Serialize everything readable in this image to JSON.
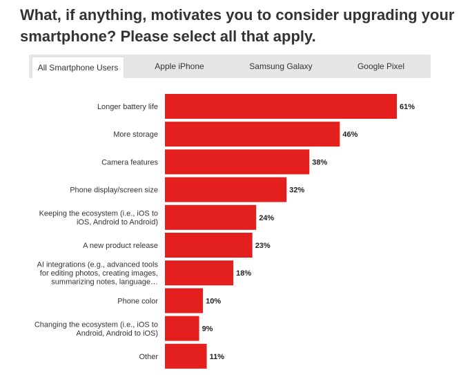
{
  "title": "What, if anything, motivates you to consider upgrading your smartphone? Please select all that apply.",
  "tabs": [
    {
      "label": "All Smartphone Users",
      "active": true
    },
    {
      "label": "Apple iPhone",
      "active": false
    },
    {
      "label": "Samsung Galaxy",
      "active": false
    },
    {
      "label": "Google Pixel",
      "active": false
    }
  ],
  "colors": {
    "bar": "#e3201e",
    "tab_bg": "#e6e6e6",
    "text": "#333333"
  },
  "chart_data": {
    "type": "bar",
    "orientation": "horizontal",
    "categories": [
      [
        "Longer battery life"
      ],
      [
        "More storage"
      ],
      [
        "Camera features"
      ],
      [
        "Phone display/screen size"
      ],
      [
        "Keeping the ecosystem (i.e., iOS to",
        "iOS, Android to Android)"
      ],
      [
        "A new product release"
      ],
      [
        "AI integrations (e.g., advanced tools",
        "for editing photos, creating images,",
        "summarizing notes, language…"
      ],
      [
        "Phone color"
      ],
      [
        "Changing the ecosystem (i.e., iOS to",
        "Android, Android to iOS)"
      ],
      [
        "Other"
      ]
    ],
    "values": [
      61,
      46,
      38,
      32,
      24,
      23,
      18,
      10,
      9,
      11
    ],
    "value_labels": [
      "61%",
      "46%",
      "38%",
      "32%",
      "24%",
      "23%",
      "18%",
      "10%",
      "9%",
      "11%"
    ],
    "unit": "%",
    "xlim": [
      0,
      61
    ],
    "grid": false,
    "legend": "none"
  }
}
